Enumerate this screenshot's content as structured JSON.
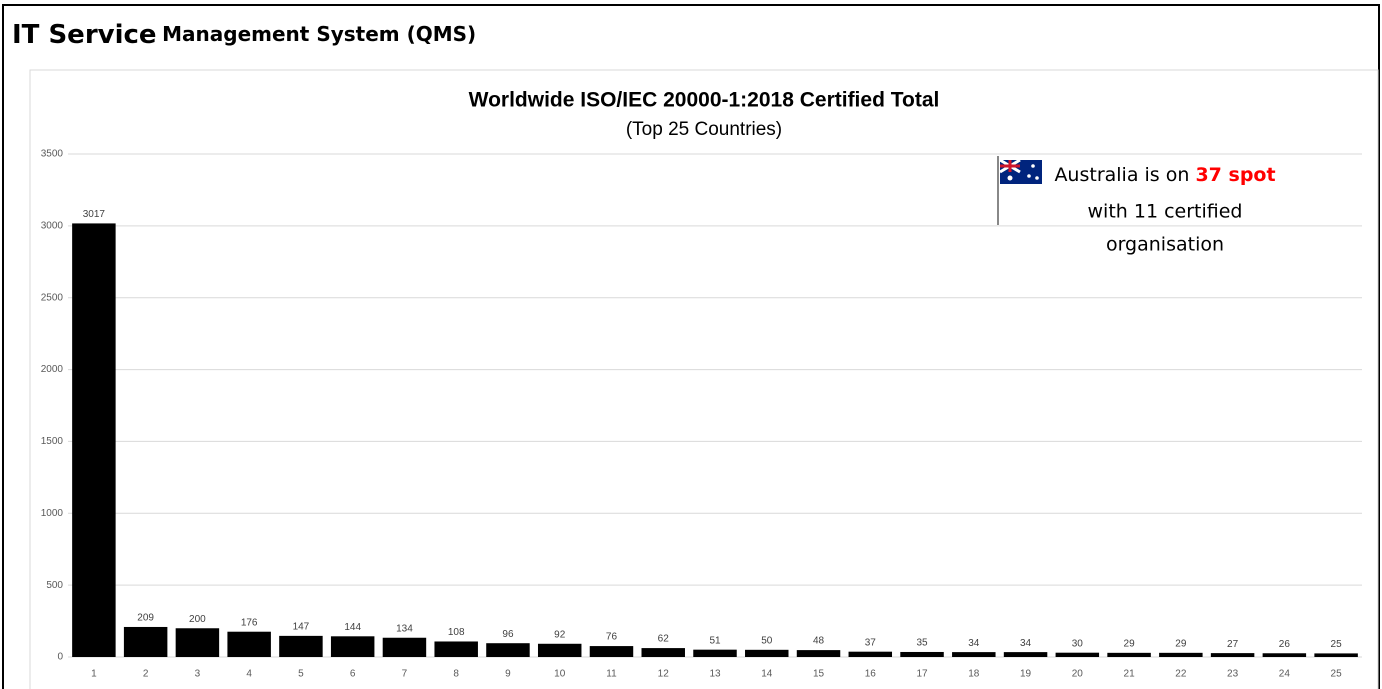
{
  "header": {
    "title_lead": "IT Service",
    "title_rest": "Management System (QMS)"
  },
  "chart_data": {
    "type": "bar",
    "title": "Worldwide ISO/IEC 20000-1:2018 Certified Total",
    "subtitle": "(Top 25 Countries)",
    "categories": [
      "1",
      "2",
      "3",
      "4",
      "5",
      "6",
      "7",
      "8",
      "9",
      "10",
      "11",
      "12",
      "13",
      "14",
      "15",
      "16",
      "17",
      "18",
      "19",
      "20",
      "21",
      "22",
      "23",
      "24",
      "25"
    ],
    "values": [
      3017,
      209,
      200,
      176,
      147,
      144,
      134,
      108,
      96,
      92,
      76,
      62,
      51,
      50,
      48,
      37,
      35,
      34,
      34,
      30,
      29,
      29,
      27,
      26,
      25
    ],
    "color": "#000000",
    "ylim": [
      0,
      3500
    ],
    "yticks": [
      0,
      500,
      1000,
      1500,
      2000,
      2500,
      3000,
      3500
    ],
    "grid": true,
    "annotation": {
      "text_before": "Australia is on",
      "highlight": "37 spot",
      "lines": [
        "with 11 certified",
        "organisation"
      ]
    }
  }
}
